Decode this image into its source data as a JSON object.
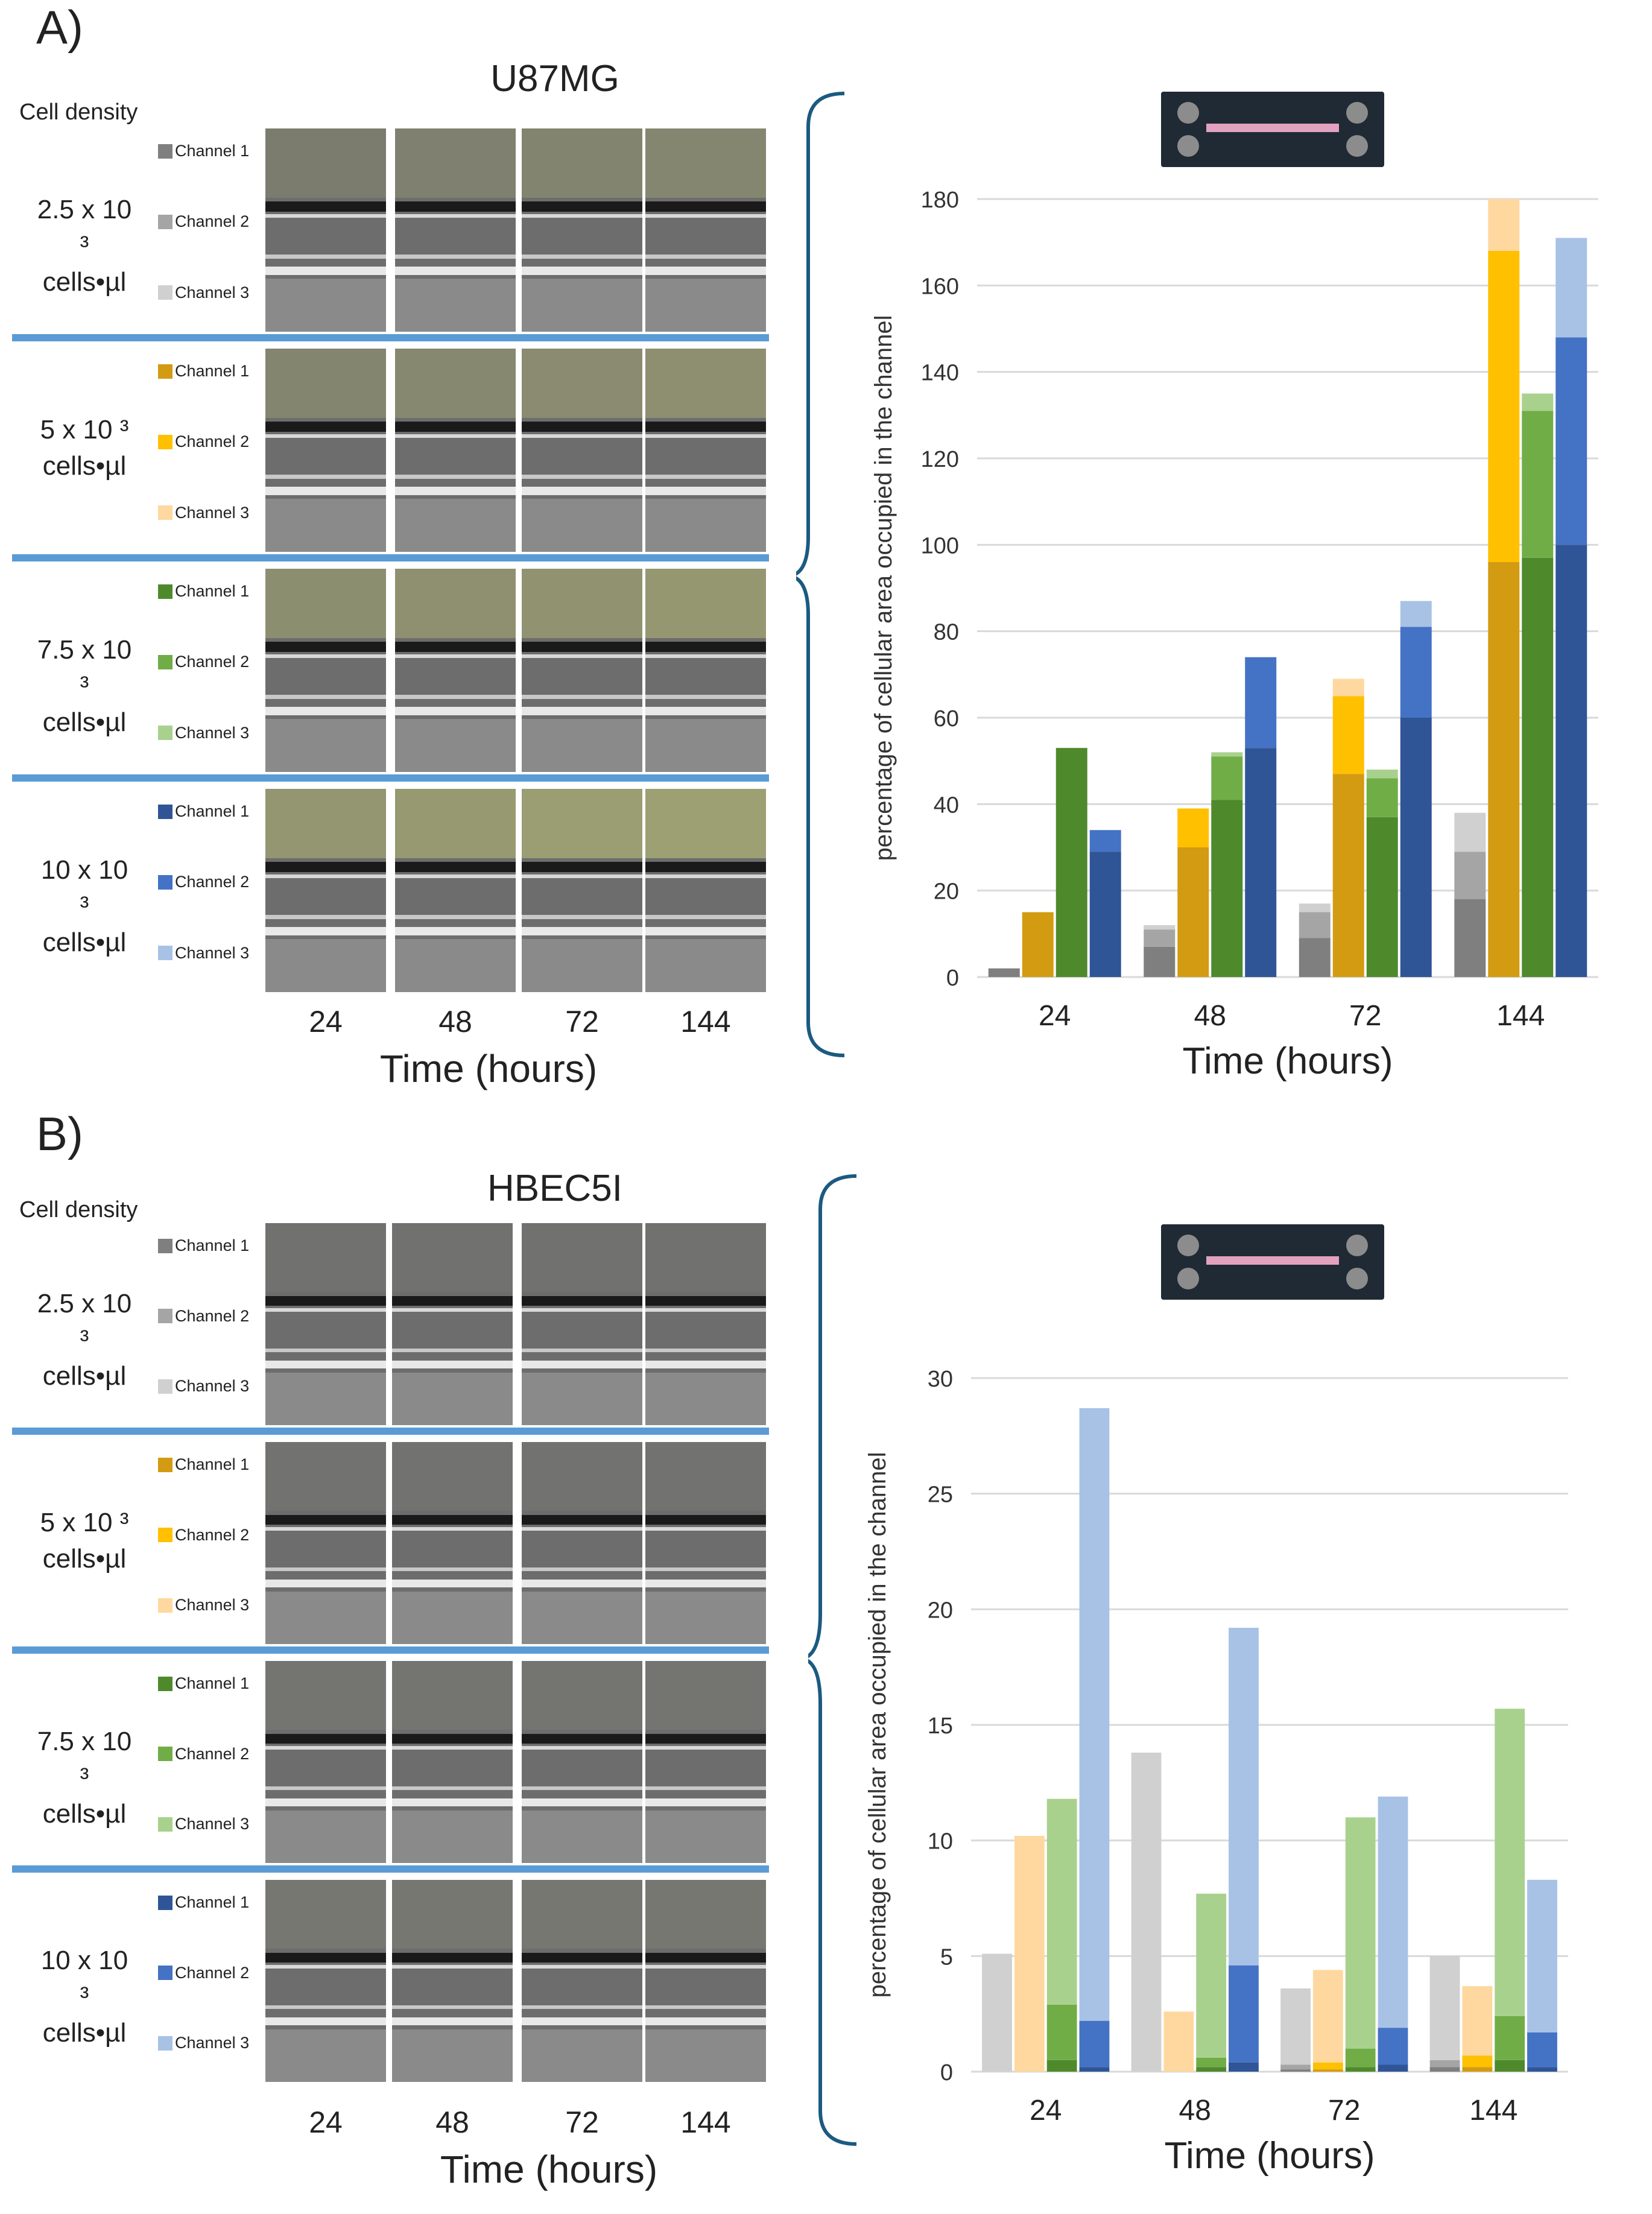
{
  "panels": [
    {
      "letter": "A)",
      "cell_line": "U87MG",
      "cell_density_label": "Cell density",
      "densities": [
        {
          "line1": "2.5 x 10 ³",
          "line2": "cells•µl",
          "channels": [
            "Channel 1",
            "Channel 2",
            "Channel 3"
          ],
          "swatches": [
            "#7f7f7f",
            "#a5a5a5",
            "#d0d0d0"
          ]
        },
        {
          "line1": "5 x 10 ³",
          "line2": "cells•µl",
          "channels": [
            "Channel 1",
            "Channel 2",
            "Channel 3"
          ],
          "swatches": [
            "#d39b12",
            "#ffc000",
            "#ffd8a0"
          ]
        },
        {
          "line1": "7.5 x 10 ³",
          "line2": "cells•µl",
          "channels": [
            "Channel 1",
            "Channel 2",
            "Channel 3"
          ],
          "swatches": [
            "#4e8a2c",
            "#70ad47",
            "#a9d18e"
          ]
        },
        {
          "line1": "10 x 10 ³",
          "line2": "cells•µl",
          "channels": [
            "Channel 1",
            "Channel 2",
            "Channel 3"
          ],
          "swatches": [
            "#2f5597",
            "#4472c4",
            "#a8c2e6"
          ]
        }
      ],
      "image_time_labels": [
        "24",
        "48",
        "72",
        "144"
      ],
      "image_xlabel": "Time (hours)",
      "chart_data": {
        "type": "bar",
        "stacked": true,
        "categories": [
          "24",
          "48",
          "72",
          "144"
        ],
        "xlabel": "Time (hours)",
        "ylabel": "percentage of cellular area occupied in the channel",
        "ylim": [
          0,
          180
        ],
        "yticks": [
          "0",
          "20",
          "40",
          "60",
          "80",
          "100",
          "120",
          "140",
          "160",
          "180"
        ],
        "grid": true,
        "series_groups": [
          {
            "name": "2.5 x 10³ cells•µl",
            "colors": [
              "#7f7f7f",
              "#a5a5a5",
              "#d0d0d0"
            ],
            "values": [
              [
                2,
                0,
                0
              ],
              [
                7,
                4,
                1
              ],
              [
                9,
                6,
                2
              ],
              [
                18,
                11,
                9
              ]
            ]
          },
          {
            "name": "5 x 10³ cells•µl",
            "colors": [
              "#d39b12",
              "#ffc000",
              "#ffd8a0"
            ],
            "values": [
              [
                15,
                0,
                0
              ],
              [
                30,
                9,
                0
              ],
              [
                47,
                18,
                4
              ],
              [
                96,
                72,
                12
              ]
            ]
          },
          {
            "name": "7.5 x 10³ cells•µl",
            "colors": [
              "#4e8a2c",
              "#70ad47",
              "#a9d18e"
            ],
            "values": [
              [
                53,
                0,
                0
              ],
              [
                41,
                10,
                1
              ],
              [
                37,
                9,
                2
              ],
              [
                97,
                34,
                4
              ]
            ]
          },
          {
            "name": "10 x 10³ cells•µl",
            "colors": [
              "#2f5597",
              "#4472c4",
              "#a8c2e6"
            ],
            "values": [
              [
                29,
                5,
                0
              ],
              [
                53,
                21,
                0
              ],
              [
                60,
                21,
                6
              ],
              [
                100,
                48,
                23
              ]
            ]
          }
        ]
      }
    },
    {
      "letter": "B)",
      "cell_line": "HBEC5I",
      "cell_density_label": "Cell density",
      "densities": [
        {
          "line1": "2.5 x 10 ³",
          "line2": "cells•µl",
          "channels": [
            "Channel 1",
            "Channel 2",
            "Channel 3"
          ],
          "swatches": [
            "#7f7f7f",
            "#a5a5a5",
            "#d0d0d0"
          ]
        },
        {
          "line1": "5 x 10 ³",
          "line2": "cells•µl",
          "channels": [
            "Channel 1",
            "Channel 2",
            "Channel 3"
          ],
          "swatches": [
            "#d39b12",
            "#ffc000",
            "#ffd8a0"
          ]
        },
        {
          "line1": "7.5 x 10 ³",
          "line2": "cells•µl",
          "channels": [
            "Channel 1",
            "Channel 2",
            "Channel 3"
          ],
          "swatches": [
            "#4e8a2c",
            "#70ad47",
            "#a9d18e"
          ]
        },
        {
          "line1": "10 x 10 ³",
          "line2": "cells•µl",
          "channels": [
            "Channel 1",
            "Channel 2",
            "Channel 3"
          ],
          "swatches": [
            "#2f5597",
            "#4472c4",
            "#a8c2e6"
          ]
        }
      ],
      "image_time_labels": [
        "24",
        "48",
        "72",
        "144"
      ],
      "image_xlabel": "Time (hours)",
      "chart_data": {
        "type": "bar",
        "stacked": true,
        "categories": [
          "24",
          "48",
          "72",
          "144"
        ],
        "xlabel": "Time (hours)",
        "ylabel": "percentage of cellular area occupied in the channel",
        "ylim": [
          0,
          30
        ],
        "yticks": [
          "0",
          "5",
          "10",
          "15",
          "20",
          "25",
          "30"
        ],
        "grid": true,
        "series_groups": [
          {
            "name": "2.5 x 10³ cells•µl",
            "colors": [
              "#7f7f7f",
              "#a5a5a5",
              "#d0d0d0"
            ],
            "values": [
              [
                0,
                0,
                5.1
              ],
              [
                0,
                0,
                13.8
              ],
              [
                0.1,
                0.2,
                3.3
              ],
              [
                0.2,
                0.3,
                4.5
              ]
            ]
          },
          {
            "name": "5 x 10³ cells•µl",
            "colors": [
              "#d39b12",
              "#ffc000",
              "#ffd8a0"
            ],
            "values": [
              [
                0,
                0,
                10.2
              ],
              [
                0,
                0,
                2.6
              ],
              [
                0.1,
                0.3,
                4.0
              ],
              [
                0.2,
                0.5,
                3.0
              ]
            ]
          },
          {
            "name": "7.5 x 10³ cells•µl",
            "colors": [
              "#4e8a2c",
              "#70ad47",
              "#a9d18e"
            ],
            "values": [
              [
                0.5,
                2.4,
                8.9
              ],
              [
                0.2,
                0.4,
                7.1
              ],
              [
                0.2,
                0.8,
                10.0
              ],
              [
                0.5,
                1.9,
                13.3
              ]
            ]
          },
          {
            "name": "10 x 10³ cells•µl",
            "colors": [
              "#2f5597",
              "#4472c4",
              "#a8c2e6"
            ],
            "values": [
              [
                0.2,
                2.0,
                26.5
              ],
              [
                0.4,
                4.2,
                14.6
              ],
              [
                0.3,
                1.6,
                10.0
              ],
              [
                0.2,
                1.5,
                6.6
              ]
            ]
          }
        ]
      }
    }
  ]
}
